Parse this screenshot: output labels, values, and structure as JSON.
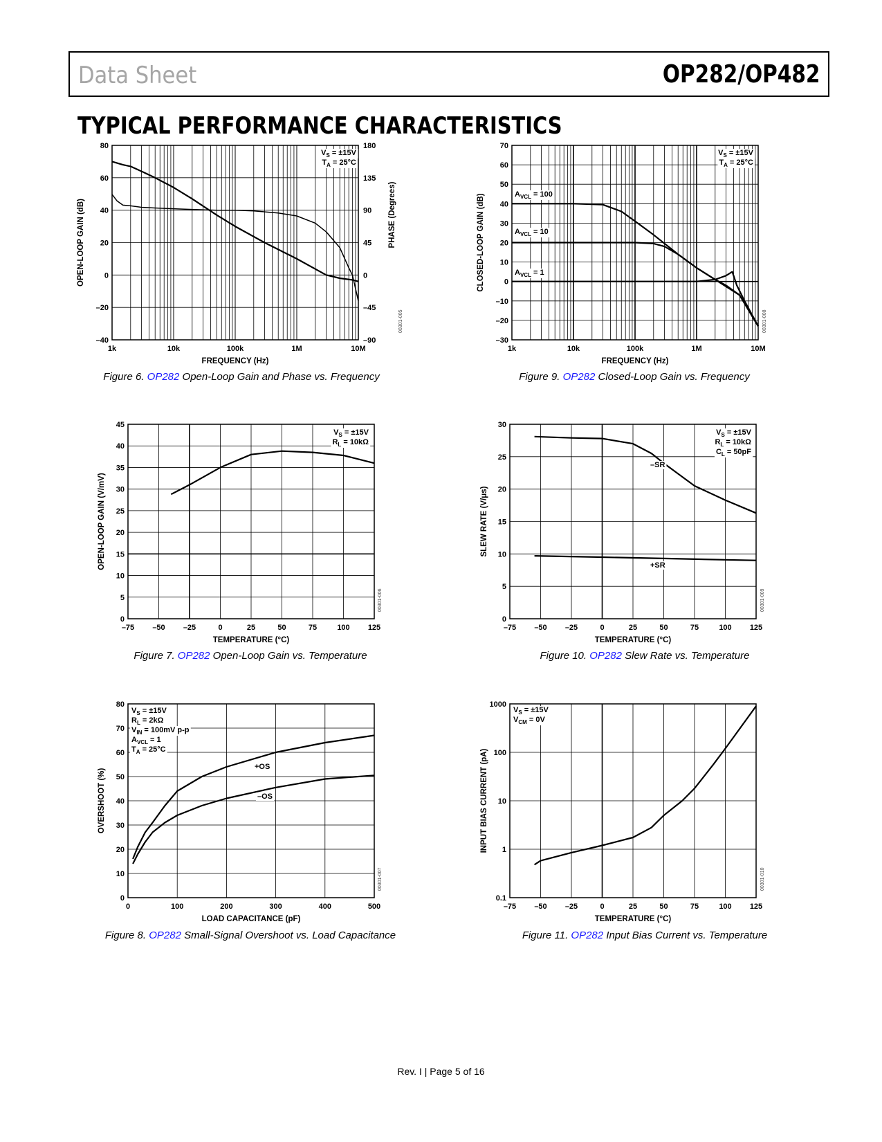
{
  "header": {
    "left": "Data Sheet",
    "right": "OP282/OP482"
  },
  "section_title": "TYPICAL PERFORMANCE CHARACTERISTICS",
  "footer": "Rev. I | Page 5 of 16",
  "captions": {
    "fig6": {
      "prefix": "Figure 6. ",
      "link": "OP282",
      "rest": " Open-Loop Gain and Phase vs. Frequency"
    },
    "fig9": {
      "prefix": "Figure 9. ",
      "link": "OP282",
      "rest": " Closed-Loop Gain vs. Frequency"
    },
    "fig7": {
      "prefix": "Figure 7. ",
      "link": "OP282",
      "rest": " Open-Loop Gain vs. Temperature"
    },
    "fig10": {
      "prefix": "Figure 10. ",
      "link": "OP282",
      "rest": " Slew Rate vs. Temperature"
    },
    "fig8": {
      "prefix": "Figure 8. ",
      "link": "OP282",
      "rest": " Small-Signal Overshoot vs. Load Capacitance"
    },
    "fig11": {
      "prefix": "Figure 11. ",
      "link": "OP282",
      "rest": " Input Bias Current vs. Temperature"
    }
  },
  "chart_data": [
    {
      "id": "fig6",
      "type": "line",
      "xscale": "log",
      "xlim": [
        1000,
        10000000
      ],
      "ylim": [
        -40,
        80
      ],
      "y2lim": [
        -90,
        180
      ],
      "xticks": [
        1000,
        10000,
        100000,
        1000000,
        10000000
      ],
      "xticklabels": [
        "1k",
        "10k",
        "100k",
        "1M",
        "10M"
      ],
      "yticks": [
        -40,
        -20,
        0,
        20,
        40,
        60,
        80
      ],
      "yticklabels": [
        "–40",
        "–20",
        "0",
        "20",
        "40",
        "60",
        "80"
      ],
      "y2ticks": [
        -90,
        -45,
        0,
        45,
        90,
        135,
        180
      ],
      "y2ticklabels": [
        "–90",
        "–45",
        "0",
        "45",
        "90",
        "135",
        "180"
      ],
      "xlabel": "FREQUENCY (Hz)",
      "ylabel": "OPEN-LOOP GAIN (dB)",
      "y2label": "PHASE (Degrees)",
      "annotations": [
        "VS = ±15V",
        "TA = 25°C"
      ],
      "code": "00301-005",
      "series": [
        {
          "role": "gain",
          "axis": "left",
          "x": [
            1000,
            1500,
            2000,
            3000,
            5000,
            10000,
            20000,
            50000,
            100000,
            300000,
            1000000,
            3000000,
            5000000,
            8000000,
            10000000
          ],
          "y": [
            70,
            68,
            67,
            64,
            60,
            54,
            47,
            37,
            30,
            20,
            10,
            0,
            -2,
            -3,
            -4
          ]
        },
        {
          "role": "phase",
          "axis": "right",
          "x": [
            1000,
            1200,
            1500,
            2000,
            3000,
            5000,
            10000,
            20000,
            50000,
            100000,
            200000,
            500000,
            1000000,
            2000000,
            3000000,
            5000000,
            7000000,
            8000000,
            10000000
          ],
          "y": [
            112,
            103,
            97,
            96,
            94,
            93,
            92,
            91,
            90,
            90,
            89,
            86,
            82,
            72,
            60,
            38,
            10,
            0,
            -36
          ]
        }
      ]
    },
    {
      "id": "fig9",
      "type": "line",
      "xscale": "log",
      "xlim": [
        1000,
        10000000
      ],
      "ylim": [
        -30,
        70
      ],
      "xticks": [
        1000,
        10000,
        100000,
        1000000,
        10000000
      ],
      "xticklabels": [
        "1k",
        "10k",
        "100k",
        "1M",
        "10M"
      ],
      "yticks": [
        -30,
        -20,
        -10,
        0,
        10,
        20,
        30,
        40,
        50,
        60,
        70
      ],
      "yticklabels": [
        "–30",
        "–20",
        "–10",
        "0",
        "10",
        "20",
        "30",
        "40",
        "50",
        "60",
        "70"
      ],
      "xlabel": "FREQUENCY (Hz)",
      "ylabel": "CLOSED-LOOP GAIN (dB)",
      "annotations": [
        "VS = ±15V",
        "TA = 25°C"
      ],
      "code": "00301-008",
      "series": [
        {
          "name": "AVCL = 100",
          "x": [
            1000,
            10000,
            30000,
            60000,
            100000,
            200000,
            500000,
            1000000,
            2000000,
            5000000,
            10000000
          ],
          "y": [
            40,
            40,
            39.5,
            36,
            31,
            24,
            14,
            7,
            1,
            -7,
            -23
          ]
        },
        {
          "name": "AVCL = 10",
          "x": [
            1000,
            100000,
            200000,
            300000,
            500000,
            1000000,
            2000000,
            3000000,
            5000000,
            10000000
          ],
          "y": [
            20,
            20,
            19.5,
            18,
            14,
            7,
            1,
            -2,
            -7,
            -23
          ]
        },
        {
          "name": "AVCL = 1",
          "x": [
            1000,
            100000,
            1000000,
            2000000,
            3000000,
            3800000,
            4500000,
            6000000,
            10000000
          ],
          "y": [
            0,
            0,
            0,
            1,
            3,
            5,
            -2,
            -10,
            -23
          ]
        }
      ]
    },
    {
      "id": "fig7",
      "type": "line",
      "xlim": [
        -75,
        125
      ],
      "ylim": [
        0,
        45
      ],
      "xticks": [
        -75,
        -50,
        -25,
        0,
        25,
        50,
        75,
        100,
        125
      ],
      "xticklabels": [
        "–75",
        "–50",
        "–25",
        "0",
        "25",
        "50",
        "75",
        "100",
        "125"
      ],
      "yticks": [
        0,
        5,
        10,
        15,
        20,
        25,
        30,
        35,
        40,
        45
      ],
      "yticklabels": [
        "0",
        "5",
        "10",
        "15",
        "20",
        "25",
        "30",
        "35",
        "40",
        "45"
      ],
      "xlabel": "TEMPERATURE (°C)",
      "ylabel": "OPEN-LOOP GAIN (V/mV)",
      "annotations": [
        "VS = ±15V",
        "RL = 10kΩ"
      ],
      "code": "00301-006",
      "series": [
        {
          "x": [
            -40,
            -25,
            0,
            25,
            50,
            75,
            100,
            125
          ],
          "y": [
            28.8,
            31,
            35,
            38,
            38.8,
            38.5,
            37.8,
            36
          ]
        }
      ]
    },
    {
      "id": "fig10",
      "type": "line",
      "xlim": [
        -75,
        125
      ],
      "ylim": [
        0,
        30
      ],
      "xticks": [
        -75,
        -50,
        -25,
        0,
        25,
        50,
        75,
        100,
        125
      ],
      "xticklabels": [
        "–75",
        "–50",
        "–25",
        "0",
        "25",
        "50",
        "75",
        "100",
        "125"
      ],
      "yticks": [
        0,
        5,
        10,
        15,
        20,
        25,
        30
      ],
      "yticklabels": [
        "0",
        "5",
        "10",
        "15",
        "20",
        "25",
        "30"
      ],
      "xlabel": "TEMPERATURE (°C)",
      "ylabel": "SLEW RATE (V/μs)",
      "annotations": [
        "VS = ±15V",
        "RL = 10kΩ",
        "CL = 50pF"
      ],
      "code": "00301-009",
      "series": [
        {
          "name": "–SR",
          "x": [
            -55,
            -25,
            0,
            25,
            40,
            50,
            75,
            100,
            125
          ],
          "y": [
            28.1,
            27.9,
            27.8,
            27,
            25.5,
            24,
            20.5,
            18.3,
            16.3
          ]
        },
        {
          "name": "+SR",
          "x": [
            -55,
            0,
            50,
            100,
            125
          ],
          "y": [
            9.7,
            9.5,
            9.3,
            9.1,
            9
          ]
        }
      ]
    },
    {
      "id": "fig8",
      "type": "line",
      "xlim": [
        0,
        500
      ],
      "ylim": [
        0,
        80
      ],
      "xticks": [
        0,
        100,
        200,
        300,
        400,
        500
      ],
      "xticklabels": [
        "0",
        "100",
        "200",
        "300",
        "400",
        "500"
      ],
      "yticks": [
        0,
        10,
        20,
        30,
        40,
        50,
        60,
        70,
        80
      ],
      "yticklabels": [
        "0",
        "10",
        "20",
        "30",
        "40",
        "50",
        "60",
        "70",
        "80"
      ],
      "xlabel": "LOAD CAPACITANCE (pF)",
      "ylabel": "OVERSHOOT (%)",
      "annotations": [
        "VS = ±15V",
        "RL = 2kΩ",
        "VIN = 100mV p-p",
        "AVCL = 1",
        "TA = 25°C"
      ],
      "code": "00301-007",
      "series": [
        {
          "name": "+OS",
          "x": [
            10,
            20,
            35,
            50,
            75,
            100,
            150,
            200,
            300,
            400,
            500
          ],
          "y": [
            16,
            21,
            27,
            31,
            38,
            44,
            50,
            54,
            60,
            64,
            67
          ]
        },
        {
          "name": "–OS",
          "x": [
            10,
            20,
            35,
            50,
            75,
            100,
            150,
            200,
            300,
            400,
            500
          ],
          "y": [
            14,
            18,
            23,
            27,
            31,
            34,
            38,
            41,
            45.5,
            49,
            50.5
          ]
        }
      ]
    },
    {
      "id": "fig11",
      "type": "line",
      "yscale": "log",
      "xlim": [
        -75,
        125
      ],
      "ylim": [
        0.1,
        1000
      ],
      "xticks": [
        -75,
        -50,
        -25,
        0,
        25,
        50,
        75,
        100,
        125
      ],
      "xticklabels": [
        "–75",
        "–50",
        "–25",
        "0",
        "25",
        "50",
        "75",
        "100",
        "125"
      ],
      "yticks": [
        0.1,
        1,
        10,
        100,
        1000
      ],
      "yticklabels": [
        "0.1",
        "1",
        "10",
        "100",
        "1000"
      ],
      "xlabel": "TEMPERATURE (°C)",
      "ylabel": "INPUT BIAS CURRENT (pA)",
      "annotations": [
        "VS = ±15V",
        "VCM = 0V"
      ],
      "code": "00301-010",
      "series": [
        {
          "x": [
            -55,
            -50,
            -25,
            0,
            25,
            40,
            50,
            65,
            75,
            90,
            100,
            125
          ],
          "y": [
            0.48,
            0.58,
            0.85,
            1.2,
            1.75,
            2.8,
            5,
            10,
            18,
            55,
            120,
            900
          ]
        }
      ]
    }
  ]
}
